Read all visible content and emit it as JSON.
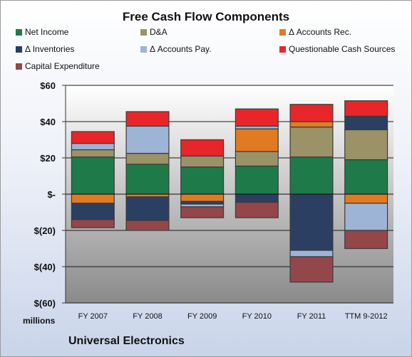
{
  "chart_data": {
    "type": "bar",
    "stacked": true,
    "title": "Free Cash Flow Components",
    "xlabel": "",
    "ylabel": "",
    "units_label": "millions",
    "ylim": [
      -60,
      60
    ],
    "yticks": [
      60,
      40,
      20,
      0,
      -20,
      -40,
      -60
    ],
    "ytick_labels": [
      "$60",
      "$40",
      "$20",
      "$-",
      "$(20)",
      "$(40)",
      "$(60)"
    ],
    "categories": [
      "FY 2007",
      "FY 2008",
      "FY 2009",
      "FY 2010",
      "FY 2011",
      "TTM 9-2012"
    ],
    "legend_position": "top",
    "series": [
      {
        "name": "Net Income",
        "color": "#1f7a4a",
        "values": [
          20.5,
          16.5,
          15,
          15.5,
          20.5,
          19
        ]
      },
      {
        "name": "D&A",
        "color": "#9c9268",
        "values": [
          4,
          6,
          6,
          8,
          16.5,
          16.5
        ]
      },
      {
        "name": "Δ Accounts Rec.",
        "color": "#e07b22",
        "values": [
          -5,
          -1.5,
          -4,
          12.5,
          3,
          -5
        ]
      },
      {
        "name": "Δ Inventories",
        "color": "#2b3f63",
        "values": [
          -9,
          -13,
          -1.5,
          -4.5,
          -31,
          7.5
        ]
      },
      {
        "name": "Δ Accounts Pay.",
        "color": "#9db4d6",
        "values": [
          3.5,
          15,
          -1.5,
          1.5,
          -3.5,
          -15
        ]
      },
      {
        "name": "Questionable Cash Sources",
        "color": "#e8262a",
        "values": [
          6.5,
          8,
          9,
          9.5,
          9.5,
          8.5
        ]
      },
      {
        "name": "Capital Expenditure",
        "color": "#93474a",
        "values": [
          -4.5,
          -5.5,
          -6,
          -8.5,
          -14,
          -10
        ]
      }
    ]
  },
  "footer": {
    "company": "Universal Electronics"
  }
}
